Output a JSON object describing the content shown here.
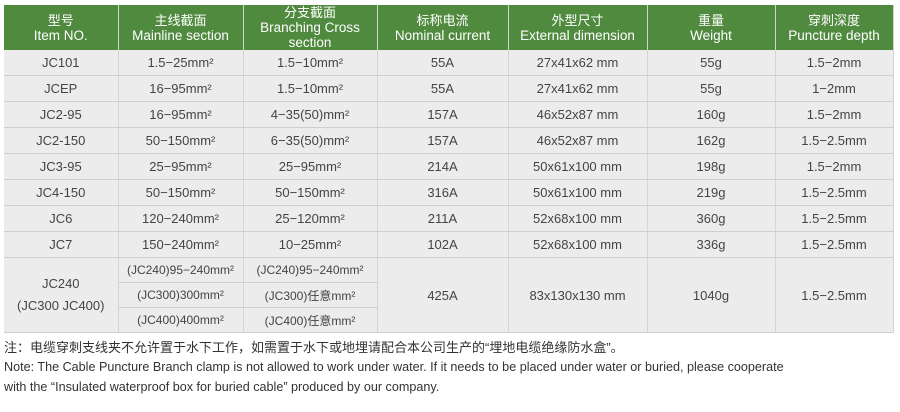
{
  "header": [
    {
      "zh": "型号",
      "en": "Item NO."
    },
    {
      "zh": "主线截面",
      "en": "Mainline section"
    },
    {
      "zh": "分支截面",
      "en": "Branching Cross section"
    },
    {
      "zh": "标称电流",
      "en": "Nominal current"
    },
    {
      "zh": "外型尺寸",
      "en": "External dimension"
    },
    {
      "zh": "重量",
      "en": "Weight"
    },
    {
      "zh": "穿刺深度",
      "en": "Puncture depth"
    }
  ],
  "rows": [
    [
      "JC101",
      "1.5−25mm²",
      "1.5−10mm²",
      "55A",
      "27x41x62 mm",
      "55g",
      "1.5−2mm"
    ],
    [
      "JCEP",
      "16−95mm²",
      "1.5−10mm²",
      "55A",
      "27x41x62 mm",
      "55g",
      "1−2mm"
    ],
    [
      "JC2-95",
      "16−95mm²",
      "4−35(50)mm²",
      "157A",
      "46x52x87 mm",
      "160g",
      "1.5−2mm"
    ],
    [
      "JC2-150",
      "50−150mm²",
      "6−35(50)mm²",
      "157A",
      "46x52x87 mm",
      "162g",
      "1.5−2.5mm"
    ],
    [
      "JC3-95",
      "25−95mm²",
      "25−95mm²",
      "214A",
      "50x61x100 mm",
      "198g",
      "1.5−2mm"
    ],
    [
      "JC4-150",
      "50−150mm²",
      "50−150mm²",
      "316A",
      "50x61x100 mm",
      "219g",
      "1.5−2.5mm"
    ],
    [
      "JC6",
      "120−240mm²",
      "25−120mm²",
      "211A",
      "52x68x100 mm",
      "360g",
      "1.5−2.5mm"
    ],
    [
      "JC7",
      "150−240mm²",
      "10−25mm²",
      "102A",
      "52x68x100 mm",
      "336g",
      "1.5−2.5mm"
    ]
  ],
  "jc240": {
    "item_line1": "JC240",
    "item_line2": "(JC300 JC400)",
    "mainline": [
      "(JC240)95−240mm²",
      "(JC300)300mm²",
      "(JC400)400mm²"
    ],
    "branch": [
      "(JC240)95−240mm²",
      "(JC300)任意mm²",
      "(JC400)任意mm²"
    ],
    "current": "425A",
    "dimension": "83x130x130 mm",
    "weight": "1040g",
    "depth": "1.5−2.5mm"
  },
  "notes": {
    "zh": "注：电缆穿刺支线夹不允许置于水下工作，如需置于水下或地埋请配合本公司生产的“埋地电缆绝缘防水盒”。",
    "en1": "Note: The Cable Puncture Branch clamp is not allowed to work under water. If it needs to be placed under water or buried, please cooperate",
    "en2": "with the “Insulated waterproof box for buried cable” produced by our company."
  },
  "colors": {
    "header": "#4f8a3f",
    "row": "#ececec"
  }
}
